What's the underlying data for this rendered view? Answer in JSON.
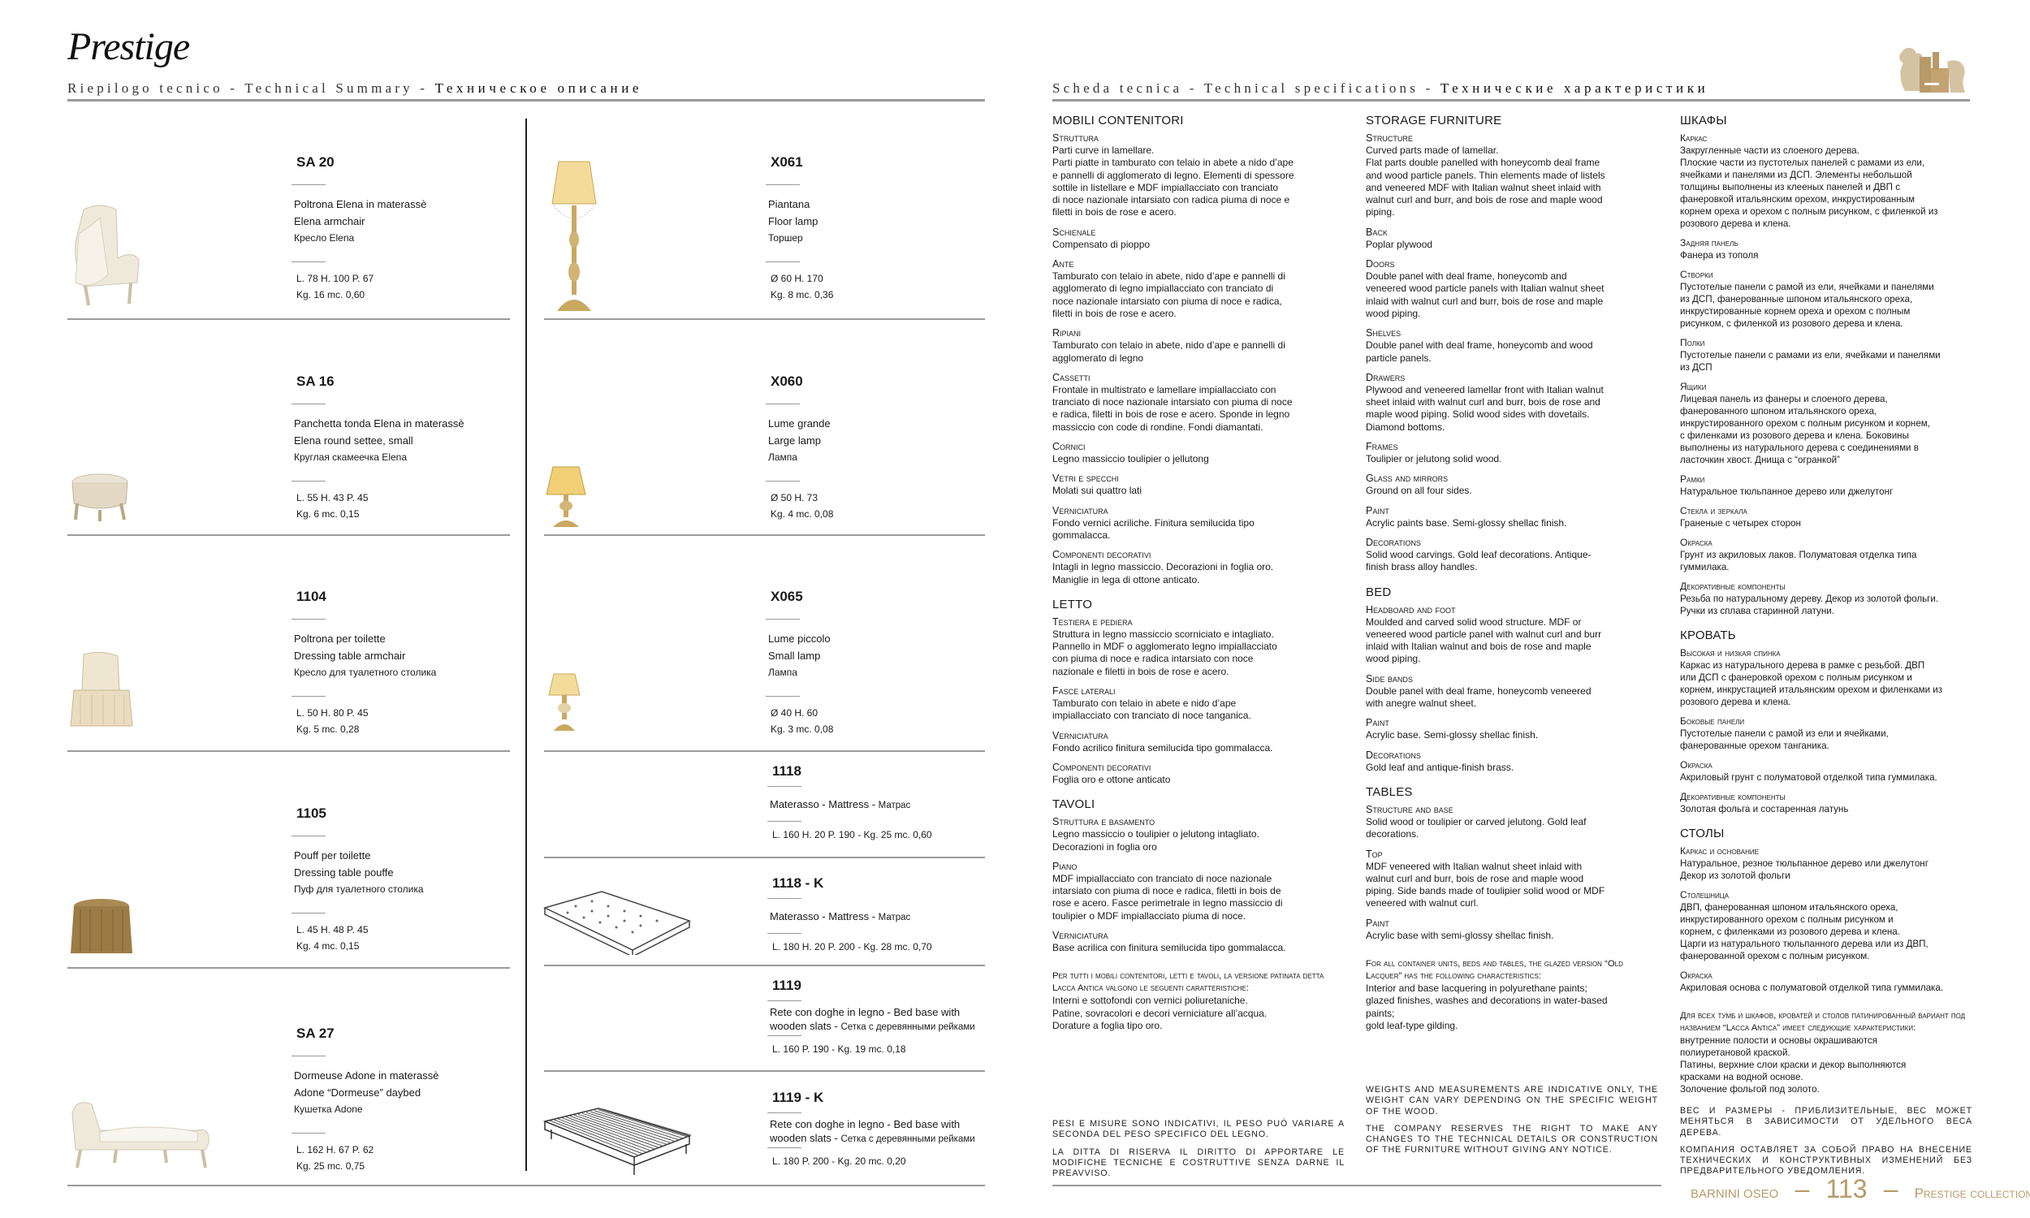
{
  "header": {
    "logo_script": "Prestige",
    "left_title": "Riepilogo tecnico - Technical Summary - ",
    "left_title_ru": "Техническое описание",
    "right_title": "Scheda tecnica - Technical specifications - ",
    "right_title_ru": "Технические характеристики",
    "brand_logo": "lion-crest-logo",
    "accent_color": "#b89a6a"
  },
  "products_left": [
    {
      "code": "SA 20",
      "it": "Poltrona Elena in materassè",
      "en": "Elena armchair",
      "ru": "Кресло Elena",
      "dims": "L. 78  H. 100  P. 67",
      "weight": "Kg. 16  mc. 0,60",
      "image": "armchair"
    },
    {
      "code": "SA 16",
      "it": "Panchetta tonda Elena in materassè",
      "en": "Elena round settee, small",
      "ru": "Круглая скамеечка Elena",
      "dims": "L. 55  H. 43  P. 45",
      "weight": "Kg. 6  mc. 0,15",
      "image": "round-settee"
    },
    {
      "code": "1104",
      "it": "Poltrona per toilette",
      "en": "Dressing table armchair",
      "ru": "Кресло для туалетного столика",
      "dims": "L. 50  H. 80  P. 45",
      "weight": "Kg. 5  mc. 0,28",
      "image": "dressing-armchair"
    },
    {
      "code": "1105",
      "it": "Pouff per toilette",
      "en": "Dressing table pouffe",
      "ru": "Пуф для туалетного столика",
      "dims": "L. 45  H. 48  P. 45",
      "weight": "Kg. 4  mc. 0,15",
      "image": "pouffe"
    },
    {
      "code": "SA 27",
      "it": "Dormeuse Adone in materassè",
      "en": "Adone “Dormeuse” daybed",
      "ru": "Кушетка Adone",
      "dims": "L. 162  H. 67  P. 62",
      "weight": "Kg. 25  mc. 0,75",
      "image": "daybed"
    }
  ],
  "products_lamps": [
    {
      "code": "X061",
      "it": "Piantana",
      "en": "Floor lamp",
      "ru": "Торшер",
      "dims": "Ø 60  H. 170",
      "weight": "Kg. 8  mc. 0,36",
      "image": "floor-lamp"
    },
    {
      "code": "X060",
      "it": "Lume grande",
      "en": "Large lamp",
      "ru": "Лампа",
      "dims": "Ø 50  H. 73",
      "weight": "Kg. 4  mc. 0,08",
      "image": "large-lamp"
    },
    {
      "code": "X065",
      "it": "Lume piccolo",
      "en": "Small lamp",
      "ru": "Лампа",
      "dims": "Ø 40  H. 60",
      "weight": "Kg. 3  mc. 0,08",
      "image": "small-lamp"
    }
  ],
  "products_beds": [
    {
      "code": "1118",
      "desc": "Materasso - Mattress - ",
      "desc_ru": "Матрас",
      "dims": "L. 160  H. 20  P. 190 - Kg. 25  mc. 0,60"
    },
    {
      "code": "1118 - K",
      "desc": "Materasso - Mattress - ",
      "desc_ru": "Матрас",
      "dims": "L. 180  H. 20  P. 200 - Kg. 28  mc. 0,70"
    },
    {
      "code": "1119",
      "desc": "Rete con doghe in legno - Bed base with\nwooden slats - ",
      "desc_ru": "Сетка с деревянными рейками",
      "dims": "L. 160  P. 190 - Kg. 19  mc. 0,18"
    },
    {
      "code": "1119 - K",
      "desc": "Rete con doghe in legno - Bed base with\nwooden slats - ",
      "desc_ru": "Сетка с деревянными рейками",
      "dims": "L. 180  P. 200 - Kg. 20  mc. 0,20"
    }
  ],
  "specs": {
    "it": {
      "sections": [
        {
          "title": "MOBILI CONTENITORI",
          "items": [
            {
              "label": "Struttura",
              "text": "Parti curve in lamellare.\nParti piatte in tamburato con telaio in abete a nido d’ape\ne pannelli di agglomerato di legno. Elementi di spessore\nsottile in listellare e MDF impiallacciato con tranciato\ndi noce nazionale intarsiato con radica piuma di noce e\nfiletti in bois de rose e acero."
            },
            {
              "label": "Schienale",
              "text": "Compensato di pioppo"
            },
            {
              "label": "Ante",
              "text": "Tamburato con telaio in abete, nido d’ape e pannelli di\nagglomerato di legno impiallacciato con tranciato di\nnoce nazionale intarsiato con piuma di noce e radica,\nfiletti in bois de rose e acero."
            },
            {
              "label": "Ripiani",
              "text": "Tamburato con telaio in abete, nido d’ape e pannelli di\nagglomerato di legno"
            },
            {
              "label": "Cassetti",
              "text": "Frontale in multistrato e lamellare impiallacciato con\ntranciato di noce nazionale intarsiato con piuma di noce\ne radica, filetti in bois de rose e acero. Sponde in legno\nmassiccio con code di rondine. Fondi diamantati."
            },
            {
              "label": "Cornici",
              "text": "Legno massiccio toulipier o jellutong"
            },
            {
              "label": "Vetri e specchi",
              "text": "Molati sui quattro lati"
            },
            {
              "label": "Verniciatura",
              "text": "Fondo vernici acriliche. Finitura semilucida tipo\ngommalacca."
            },
            {
              "label": "Componenti decorativi",
              "text": "Intagli in legno massiccio. Decorazioni in foglia oro.\nManiglie in lega di ottone anticato."
            }
          ]
        },
        {
          "title": "LETTO",
          "items": [
            {
              "label": "Testiera e pediera",
              "text": "Struttura in legno massiccio scorniciato e intagliato.\nPannello in MDF o agglomerato legno impiallacciato\ncon piuma di noce e radica intarsiato con noce\nnazionale e filetti in bois de rose e acero."
            },
            {
              "label": "Fasce laterali",
              "text": "Tamburato con telaio in abete e nido d’ape\nimpiallacciato con tranciato di noce tanganica."
            },
            {
              "label": "Verniciatura",
              "text": "Fondo acrilico finitura semilucida tipo gommalacca."
            },
            {
              "label": "Componenti decorativi",
              "text": "Foglia oro e ottone anticato"
            }
          ]
        },
        {
          "title": "TAVOLI",
          "items": [
            {
              "label": "Struttura e basamento",
              "text": "Legno massiccio o toulipier o jelutong intagliato.\nDecorazioni in foglia oro"
            },
            {
              "label": "Piano",
              "text": "MDF impiallacciato con tranciato di noce nazionale\nintarsiato con piuma di noce e radica, filetti in bois de\nrose e acero. Fasce perimetrale in legno massiccio di\ntoulipier o MDF impiallacciato piuma di noce."
            },
            {
              "label": "Verniciatura",
              "text": "Base acrilica con finitura semilucida tipo gommalacca."
            }
          ]
        }
      ],
      "note": {
        "label": "Per tutti i mobili contenitori, letti e tavoli, la versione patinata detta Lacca Antica valgono le seguenti caratteristiche:",
        "text": "Interni e sottofondi con vernici poliuretaniche.\nPatine, sovracolori e decori verniciature all’acqua.\nDorature a foglia tipo oro."
      },
      "footnotes": [
        "Pesi e misure sono indicativi, il peso può variare a seconda del peso specifico del legno.",
        "La ditta di riserva il diritto di apportare le modifiche tecniche e costruttive senza darne il preavviso."
      ]
    },
    "en": {
      "sections": [
        {
          "title": "STORAGE FURNITURE",
          "items": [
            {
              "label": "Structure",
              "text": "Curved parts made of lamellar.\nFlat parts double panelled with honeycomb deal frame\nand wood particle panels. Thin elements made of listels\nand veneered MDF with Italian walnut sheet inlaid with\nwalnut curl and burr, and bois de rose and maple wood\npiping."
            },
            {
              "label": "Back",
              "text": "Poplar plywood"
            },
            {
              "label": "Doors",
              "text": "Double panel with deal frame, honeycomb and\nveneered wood particle panels with Italian walnut sheet\ninlaid with walnut curl and burr, bois de rose and maple\nwood piping."
            },
            {
              "label": "Shelves",
              "text": "Double panel with deal frame, honeycomb and wood\nparticle panels."
            },
            {
              "label": "Drawers",
              "text": "Plywood and veneered lamellar front with Italian walnut\nsheet inlaid with walnut curl and burr, bois de rose and\nmaple wood piping. Solid wood sides with dovetails.\nDiamond bottoms."
            },
            {
              "label": "Frames",
              "text": "Toulipier or jelutong solid wood."
            },
            {
              "label": "Glass and mirrors",
              "text": "Ground on all four sides."
            },
            {
              "label": "Paint",
              "text": "Acrylic paints base. Semi-glossy shellac finish."
            },
            {
              "label": "Decorations",
              "text": "Solid wood carvings. Gold leaf decorations. Antique-\nfinish brass alloy handles."
            }
          ]
        },
        {
          "title": "BED",
          "items": [
            {
              "label": "Headboard and foot",
              "text": "Moulded and carved solid wood structure. MDF or\nveneered wood particle panel with walnut curl and burr\ninlaid with Italian walnut and bois de rose and maple\nwood piping."
            },
            {
              "label": "Side bands",
              "text": "Double panel with deal frame, honeycomb veneered\nwith anegre walnut sheet."
            },
            {
              "label": "Paint",
              "text": "Acrylic base. Semi-glossy shellac finish."
            },
            {
              "label": "Decorations",
              "text": "Gold leaf and antique-finish brass."
            }
          ]
        },
        {
          "title": "TABLES",
          "items": [
            {
              "label": "Structure and base",
              "text": "Solid wood or toulipier or carved jelutong. Gold leaf\ndecorations."
            },
            {
              "label": "Top",
              "text": "MDF veneered with Italian walnut sheet inlaid with\nwalnut curl and burr, bois de rose and maple wood\npiping. Side bands made of toulipier solid wood or MDF\nveneered with walnut curl."
            },
            {
              "label": "Paint",
              "text": "Acrylic base with semi-glossy shellac finish."
            }
          ]
        }
      ],
      "note": {
        "label": "For all container units, beds and tables, the glazed version “Old Lacquer” has the following characteristics:",
        "text": "Interior and base lacquering in polyurethane paints;\nglazed finishes, washes and decorations in water-based\npaints;\ngold leaf-type gilding."
      },
      "footnotes": [
        "Weights and measurements are indicative only, the weight can vary depending on the specific weight of the wood.",
        "The company reserves the right to make any changes to the technical details or construction of the furniture without giving any notice."
      ]
    },
    "ru": {
      "sections": [
        {
          "title": "ШКАФЫ",
          "items": [
            {
              "label": "Каркас",
              "text": "Закругленные части из слоеного дерева.\nПлоские части из пустотелых панелей с рамами из ели,\nячейками и панелями из ДСП. Элементы небольшой\nтолщины выполнены из клееных панелей и ДВП с\nфанеровкой итальянским орехом, инкрустированным\nкорнем ореха и орехом с полным рисунком, с филенкой из\nрозового дерева и клена."
            },
            {
              "label": "Задняя панель",
              "text": "Фанера из тополя"
            },
            {
              "label": "Створки",
              "text": "Пустотелые панели с рамой из ели, ячейками и панелями\nиз ДСП, фанерованные шпоном итальянского ореха,\nинкрустированные корнем ореха и орехом с полным\nрисунком, с филенкой из розового дерева и клена."
            },
            {
              "label": "Полки",
              "text": "Пустотелые панели с рамами из ели, ячейками и панелями\nиз ДСП"
            },
            {
              "label": "Ящики",
              "text": "Лицевая панель из фанеры и слоеного дерева,\nфанерованного шпоном итальянского ореха,\nинкрустированного орехом с полным рисунком и корнем,\nс филенками из розового дерева и клена. Боковины\nвыполнены из натурального дерева с соединениями в\nласточкин хвост. Днища с “огранкой”"
            },
            {
              "label": "Рамки",
              "text": "Натуральное тюльпанное дерево или джелутонг"
            },
            {
              "label": "Стекла и зеркала",
              "text": "Граненые с четырех сторон"
            },
            {
              "label": "Окраска",
              "text": "Грунт из акриловых лаков. Полуматовая отделка типа\nгуммилака."
            },
            {
              "label": "Декоративные компоненты",
              "text": "Резьба по натуральному дереву. Декор из золотой фольги.\nРучки из сплава старинной латуни."
            }
          ]
        },
        {
          "title": "КРОВАТЬ",
          "items": [
            {
              "label": "Высокая и низкая спинка",
              "text": "Каркас из натурального дерева в рамке с резьбой. ДВП\nили ДСП с фанеровкой орехом с полным рисунком и\nкорнем, инкрустацией итальянским орехом и филенками из\nрозового дерева и клена."
            },
            {
              "label": "Боковые панели",
              "text": "Пустотелые панели с рамой из ели и ячейками,\nфанерованные орехом танганика."
            },
            {
              "label": "Окраска",
              "text": "Акриловый грунт с полуматовой отделкой типа гуммилака."
            },
            {
              "label": "Декоративные компоненты",
              "text": "Золотая фольга и состаренная латунь"
            }
          ]
        },
        {
          "title": "СТОЛЫ",
          "items": [
            {
              "label": "Каркас и основание",
              "text": "Натуральное, резное тюльпанное дерево или джелутонг\nДекор из золотой фольги"
            },
            {
              "label": "Столешница",
              "text": "ДВП, фанерованная шпоном итальянского ореха,\nинкрустированного орехом с полным рисунком и\nкорнем, с филенками из розового дерева и клена.\nЦарги из натурального тюльпанного дерева или из ДВП,\nфанерованной орехом с полным рисунком."
            },
            {
              "label": "Окраска",
              "text": "Акриловая основа с полуматовой отделкой типа гуммилака."
            }
          ]
        }
      ],
      "note": {
        "label": "Для всех тумб и шкафов, кроватей и столов патинированный вариант под названием “Lacca Antica” имеет следующие характеристики:",
        "text": "внутренние полости и основы окрашиваются\nполиуретановой краской.\nПатины, верхние слои краски и декор выполняются\nкрасками на водной основе.\nЗолочение фольгой под золото."
      },
      "footnotes": [
        "Вес и размеры - приблизительные, вес может меняться в зависимости от удельного веса дерева.",
        "Компания оставляет за собой право на внесение технических и конструктивных изменений без предварительного уведомления."
      ]
    }
  },
  "footer": {
    "brand": "BARNINI OSEO",
    "dash": "–",
    "page": "113",
    "collection": "Prestige collection"
  }
}
